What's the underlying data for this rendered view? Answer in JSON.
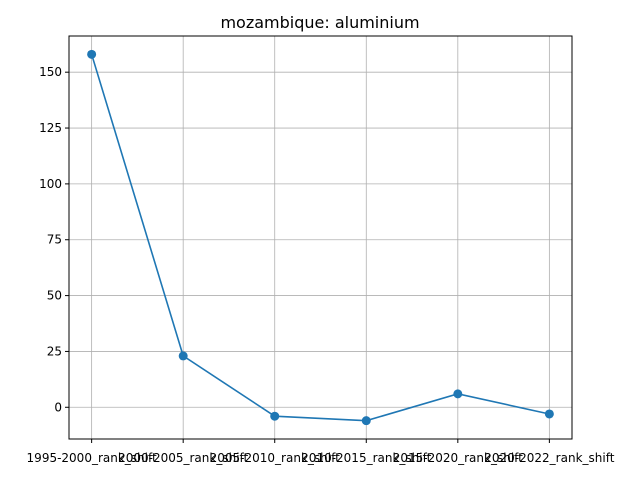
{
  "chart_data": {
    "type": "line",
    "title": "mozambique: aluminium",
    "xlabel": "",
    "ylabel": "",
    "categories": [
      "1995-2000_rank_shift",
      "2000-2005_rank_shift",
      "2005-2010_rank_shift",
      "2010-2015_rank_shift",
      "2015-2020_rank_shift",
      "2020-2022_rank_shift"
    ],
    "series": [
      {
        "values": [
          158,
          23,
          -4,
          -6,
          6,
          -3
        ],
        "color": "#1f77b4",
        "marker": "circle"
      }
    ],
    "ylim": [
      -14.2,
      166.2
    ],
    "yticks": [
      0,
      25,
      50,
      75,
      100,
      125,
      150
    ],
    "grid": true,
    "legend": "none"
  }
}
